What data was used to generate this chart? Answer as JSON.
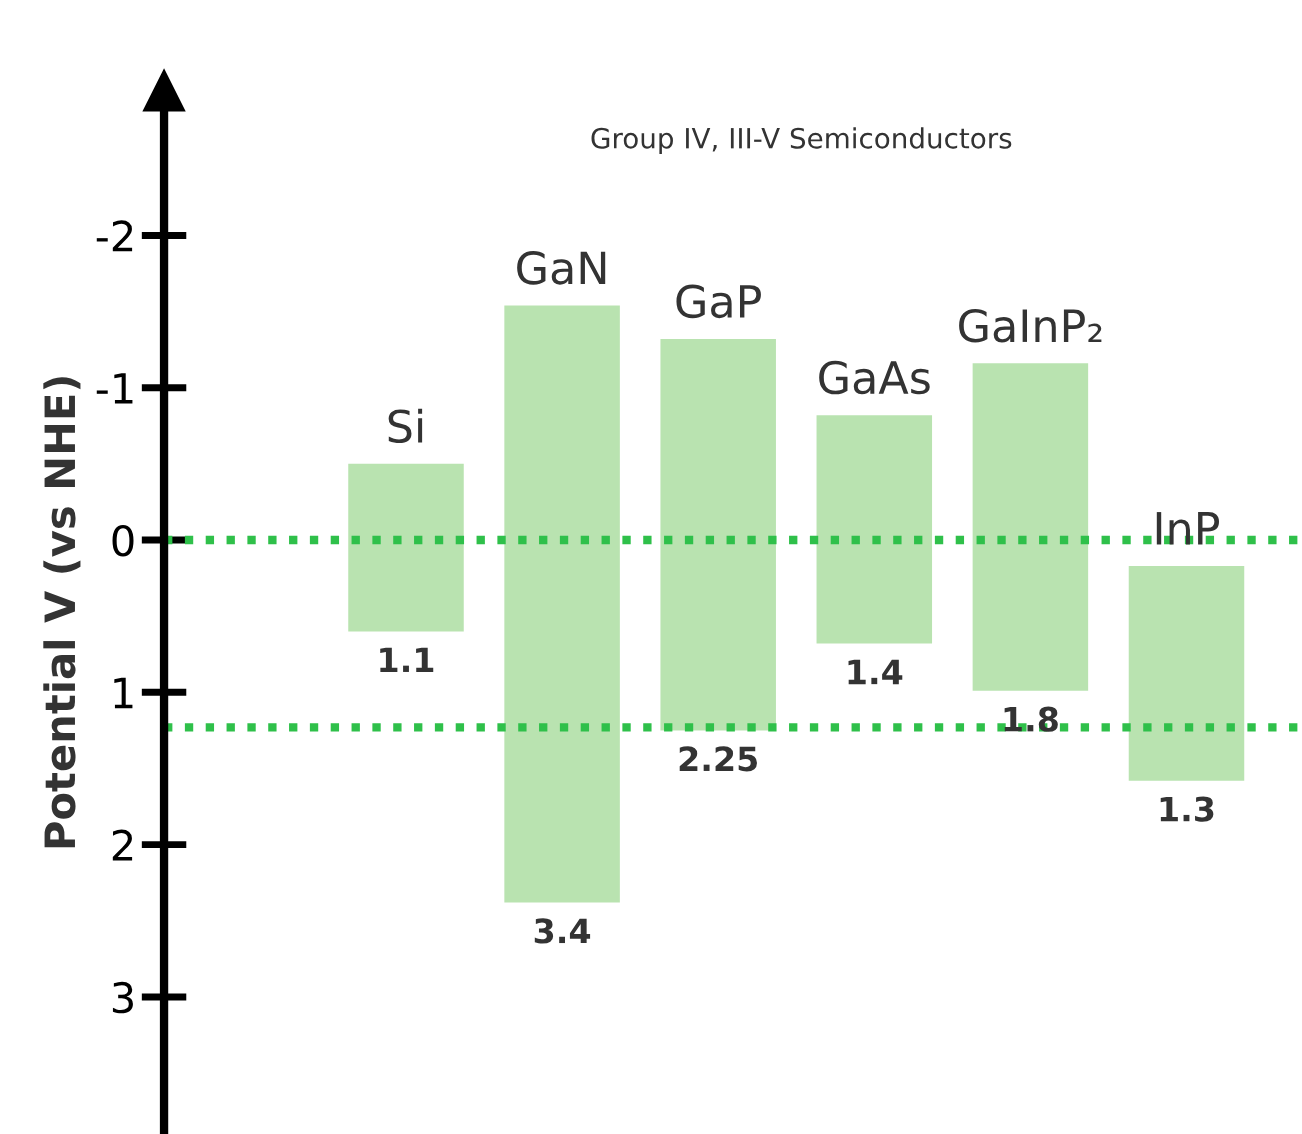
{
  "chart_data": {
    "type": "bar",
    "title": "Group IV, III-V Semiconductors",
    "ylabel": "Potential V (vs NHE)",
    "categories": [
      "Si",
      "GaN",
      "GaP",
      "GaAs",
      "GaInP₂",
      "InP"
    ],
    "base": [
      -0.5,
      -1.54,
      -1.32,
      -0.82,
      -1.16,
      0.17
    ],
    "values": [
      1.1,
      3.92,
      2.57,
      1.5,
      2.15,
      1.41
    ],
    "color": "#b9e3b0",
    "annotations": [
      {
        "text": "1.1",
        "x": "Si",
        "y": 0.6
      },
      {
        "text": "3.4",
        "x": "GaN",
        "y": 2.38
      },
      {
        "text": "2.25",
        "x": "GaP",
        "y": 1.25
      },
      {
        "text": "1.4",
        "x": "GaAs",
        "y": 0.68
      },
      {
        "text": "1.8",
        "x": "GaInP₂",
        "y": 0.99
      },
      {
        "text": "1.3",
        "x": "InP",
        "y": 1.58
      }
    ],
    "ref_lines": [
      {
        "axis": "y",
        "value": 0,
        "color": "#2fc04a",
        "line_style": "dotted"
      },
      {
        "axis": "y",
        "value": 1.23,
        "color": "#2fc04a",
        "line_style": "dotted"
      }
    ],
    "ylim": [
      3.9,
      -2.95
    ],
    "yticks": [
      -2,
      -1,
      0,
      1,
      2,
      3
    ],
    "grid": false,
    "legend": false
  }
}
